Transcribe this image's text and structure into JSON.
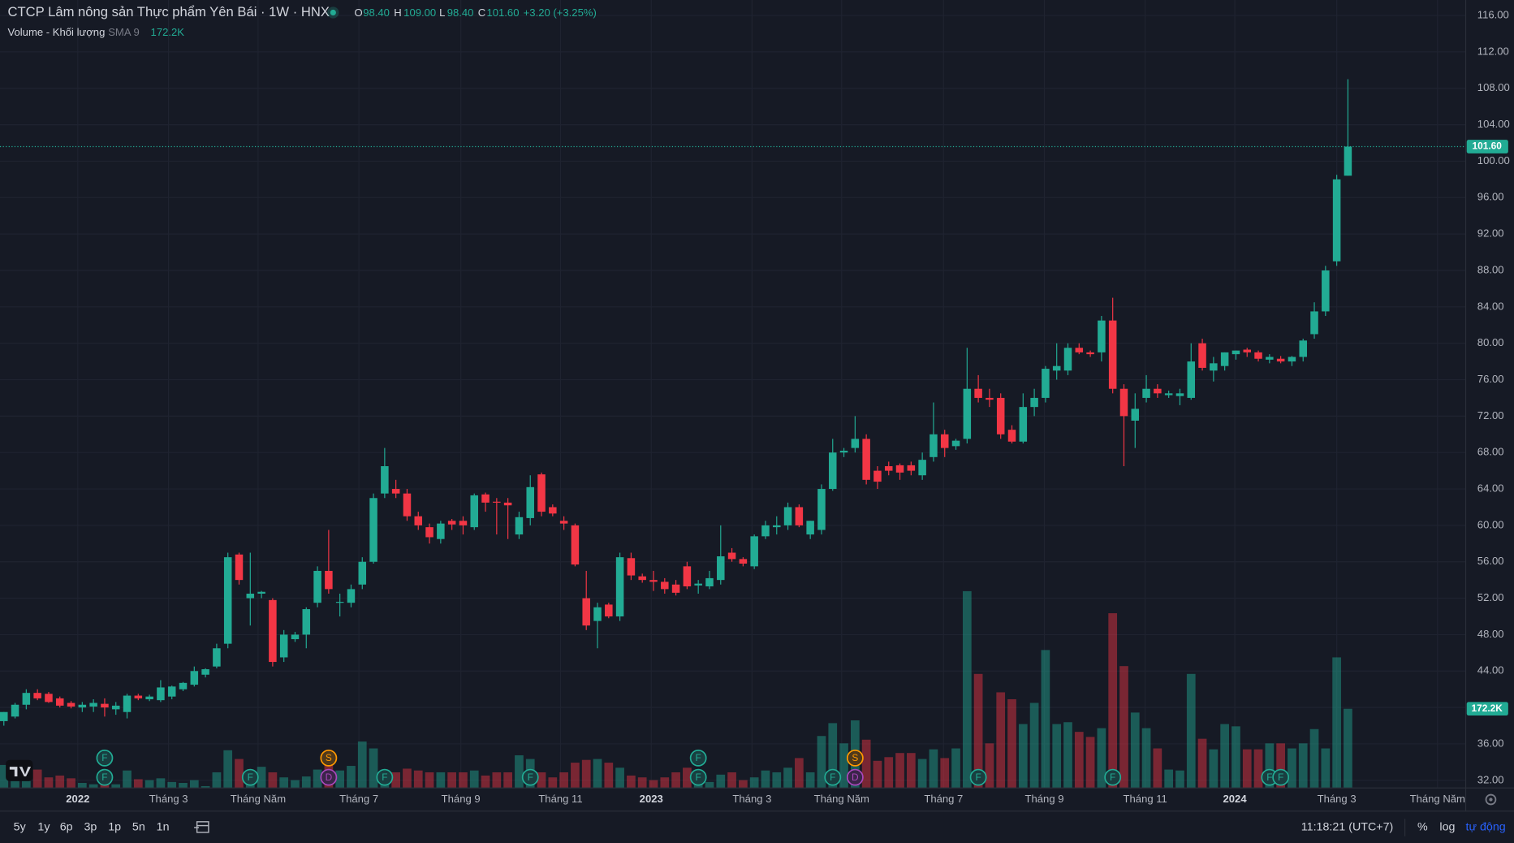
{
  "chart_data": {
    "type": "candlestick",
    "header": {
      "title": "CTCP Lâm nông sản Thực phẩm Yên Bái · 1W · HNX",
      "ohlc": [
        {
          "key": "O",
          "value": "98.40"
        },
        {
          "key": "H",
          "value": "109.00"
        },
        {
          "key": "L",
          "value": "98.40"
        },
        {
          "key": "C",
          "value": "101.60"
        }
      ],
      "change": "+3.20 (+3.25%)",
      "volume_title": "Volume - Khối lượng",
      "volume_sma": "SMA 9",
      "volume_value": "172.2K"
    },
    "up_color": "#22ab94",
    "down_color": "#f23645",
    "open": [
      38.5,
      39,
      40.3,
      41.6,
      41.5,
      41,
      40.5,
      40,
      40.1,
      40.4,
      39.8,
      39.5,
      41.3,
      40.9,
      40.8,
      41.2,
      42,
      42.5,
      43.6,
      44.5,
      47,
      56.8,
      52,
      52.5,
      51.8,
      45.5,
      47.5,
      48,
      51.5,
      55,
      51.5,
      51.5,
      53.5,
      56,
      63.5,
      64,
      63.5,
      61,
      59.8,
      58.5,
      60.5,
      60.5,
      59.8,
      63.4,
      62.6,
      62.5,
      59,
      60.8,
      65.6,
      62,
      60.5,
      60,
      52,
      49.5,
      51.3,
      50,
      56.4,
      54.4,
      54,
      53.8,
      53.5,
      55.5,
      53.4,
      53.3,
      54,
      57,
      56.3,
      55.5,
      58.8,
      59.8,
      60,
      62,
      59,
      59.5,
      64,
      68,
      68.5,
      69.5,
      66,
      66.5,
      66.6,
      66.6,
      65.5,
      67.5,
      70,
      68.7,
      69.5,
      75,
      74,
      74,
      70.5,
      69.2,
      73,
      74,
      77,
      77,
      79.5,
      79,
      79,
      82.5,
      75,
      71.5,
      74,
      75,
      74.3,
      74.2,
      74,
      80,
      77,
      77.5,
      78.8,
      79.3,
      79,
      78.2,
      78.3,
      78,
      78.5,
      81,
      83.5,
      89,
      98.4
    ],
    "high": [
      39.5,
      40.5,
      42,
      42,
      41.7,
      41.2,
      40.7,
      40.6,
      40.9,
      41,
      40.6,
      41.5,
      41.5,
      41.4,
      43,
      42.4,
      42.8,
      44.5,
      44.3,
      47,
      57,
      57,
      57,
      52.8,
      52,
      48.5,
      48.3,
      51,
      55.5,
      59.5,
      52.5,
      53.5,
      56.5,
      63.5,
      68.5,
      65,
      64,
      61.5,
      60.2,
      60.5,
      60.7,
      61,
      63.5,
      63.6,
      63,
      63,
      61.5,
      65.5,
      65.8,
      62.3,
      61,
      60.2,
      55,
      51.5,
      51.5,
      57,
      57,
      54.7,
      55,
      54.2,
      54,
      56,
      54,
      55,
      60,
      57.5,
      56.5,
      59,
      60.5,
      61,
      62.5,
      62.3,
      60.5,
      64.5,
      69.5,
      68.5,
      72,
      70,
      66.5,
      67,
      66.8,
      67,
      68,
      73.5,
      70.5,
      69.5,
      79.5,
      76.5,
      75,
      74.5,
      71,
      74.5,
      75,
      77.5,
      80,
      80,
      80,
      79.2,
      83,
      85,
      75.5,
      74.5,
      76.5,
      75.5,
      74.8,
      75,
      80,
      80.5,
      78.5,
      79,
      79.2,
      79.5,
      79.2,
      78.8,
      78.6,
      78.6,
      80.5,
      84.5,
      88.5,
      98.5,
      109
    ],
    "low": [
      38,
      38.8,
      39.8,
      40.8,
      40.5,
      40,
      39.9,
      39.5,
      39.5,
      39,
      39.2,
      38.8,
      40.8,
      40.7,
      40.6,
      40.9,
      41.8,
      42.3,
      43.3,
      44.3,
      46.5,
      53.5,
      49,
      52,
      44.5,
      45,
      47.2,
      46.5,
      51,
      52.5,
      50,
      51,
      53,
      55.8,
      63,
      63,
      60.5,
      59.5,
      58,
      58,
      59.5,
      59,
      59.5,
      61.5,
      59,
      58.5,
      58.5,
      60,
      61,
      61,
      59.5,
      55.5,
      48.5,
      46.5,
      49.8,
      49.5,
      54,
      53.7,
      52.8,
      52.5,
      52.3,
      53,
      52.5,
      53,
      53.5,
      56,
      55.5,
      55.2,
      58.5,
      59,
      59.5,
      59.8,
      58.5,
      59,
      63.8,
      67.5,
      68,
      64.5,
      64,
      65.5,
      65,
      65.5,
      65,
      67,
      67.5,
      68.3,
      69,
      73.5,
      73,
      69.5,
      69,
      69,
      72,
      73.5,
      76,
      76.5,
      78.8,
      78.5,
      78,
      74.5,
      66.5,
      68.5,
      73.5,
      74,
      74,
      73.2,
      73.8,
      77,
      75.8,
      77,
      78.2,
      78.5,
      78,
      77.8,
      77.8,
      77.5,
      78,
      80.5,
      83,
      88.5,
      98.4
    ],
    "close": [
      39.5,
      40.3,
      41.6,
      41,
      40.6,
      40.2,
      40.1,
      40.3,
      40.5,
      40,
      40.2,
      41.3,
      41,
      41.2,
      42.2,
      42.3,
      42.7,
      44,
      44.2,
      46.5,
      56.5,
      54,
      52.5,
      52.7,
      45,
      48,
      48,
      50.8,
      55,
      53,
      51.6,
      53,
      56,
      63,
      66.5,
      63.5,
      61,
      60,
      58.7,
      60.2,
      60.1,
      60,
      63.3,
      62.5,
      62.5,
      62.2,
      60.9,
      64.2,
      61.5,
      61.3,
      60.2,
      55.7,
      49,
      51,
      50,
      56.5,
      54.5,
      54,
      53.8,
      53,
      52.6,
      53.3,
      53.6,
      54.2,
      56.6,
      56.3,
      55.8,
      58.8,
      60,
      60,
      62,
      60,
      60.5,
      64,
      68,
      68.2,
      69.5,
      65,
      64.8,
      66,
      65.8,
      66,
      67.2,
      70,
      68.5,
      69.3,
      75,
      74,
      73.8,
      70,
      69.2,
      73,
      74,
      77.2,
      77.5,
      79.5,
      79,
      78.8,
      82.5,
      75,
      72,
      72.8,
      75,
      74.5,
      74.5,
      74.5,
      78,
      77.3,
      77.8,
      79,
      79.2,
      79,
      78.3,
      78.5,
      78,
      78.5,
      80.3,
      83.5,
      88,
      98,
      101.6
    ],
    "volume": [
      50000,
      44000,
      38000,
      40000,
      23000,
      27000,
      21000,
      11000,
      8000,
      23000,
      8000,
      38000,
      19000,
      17000,
      21000,
      13000,
      11000,
      17000,
      4000,
      34000,
      82000,
      63000,
      34000,
      46000,
      34000,
      23000,
      17000,
      25000,
      40000,
      55000,
      38000,
      48000,
      101000,
      86000,
      38000,
      34000,
      42000,
      38000,
      34000,
      34000,
      34000,
      34000,
      38000,
      27000,
      34000,
      34000,
      71000,
      63000,
      34000,
      23000,
      34000,
      55000,
      61000,
      63000,
      55000,
      44000,
      27000,
      23000,
      17000,
      23000,
      34000,
      44000,
      8000,
      13000,
      29000,
      34000,
      17000,
      23000,
      38000,
      34000,
      44000,
      65000,
      34000,
      113000,
      141000,
      97000,
      147000,
      105000,
      59000,
      67000,
      76000,
      76000,
      63000,
      84000,
      65000,
      86000,
      428000,
      248000,
      97000,
      208000,
      193000,
      139000,
      185000,
      300000,
      139000,
      143000,
      122000,
      111000,
      130000,
      380000,
      265000,
      164000,
      130000,
      86000,
      40000,
      38000,
      248000,
      107000,
      84000,
      139000,
      134000,
      84000,
      84000,
      97000,
      97000,
      86000,
      97000,
      128000,
      86000,
      284000,
      172200
    ],
    "ylim": [
      31.16,
      117.7
    ],
    "vlim": [
      0,
      1713600
    ],
    "yticks": [
      {
        "value": 32,
        "label": "32.00"
      },
      {
        "value": 36,
        "label": "36.00"
      },
      {
        "value": 40,
        "label": "40.00"
      },
      {
        "value": 44,
        "label": "44.00"
      },
      {
        "value": 48,
        "label": "48.00"
      },
      {
        "value": 52,
        "label": "52.00"
      },
      {
        "value": 56,
        "label": "56.00"
      },
      {
        "value": 60,
        "label": "60.00"
      },
      {
        "value": 64,
        "label": "64.00"
      },
      {
        "value": 68,
        "label": "68.00"
      },
      {
        "value": 72,
        "label": "72.00"
      },
      {
        "value": 76,
        "label": "76.00"
      },
      {
        "value": 80,
        "label": "80.00"
      },
      {
        "value": 84,
        "label": "84.00"
      },
      {
        "value": 88,
        "label": "88.00"
      },
      {
        "value": 92,
        "label": "92.00"
      },
      {
        "value": 96,
        "label": "96.00"
      },
      {
        "value": 100,
        "label": "100.00"
      },
      {
        "value": 104,
        "label": "104.00"
      },
      {
        "value": 108,
        "label": "108.00"
      },
      {
        "value": 112,
        "label": "112.00"
      },
      {
        "value": 116,
        "label": "116.00"
      }
    ],
    "xticks": [
      {
        "value": 6.6,
        "label": "2022"
      },
      {
        "value": 14.7,
        "label": "Tháng 3"
      },
      {
        "value": 22.7,
        "label": "Tháng Năm"
      },
      {
        "value": 31.7,
        "label": "Tháng 7"
      },
      {
        "value": 40.8,
        "label": "Tháng 9"
      },
      {
        "value": 49.7,
        "label": "Tháng 11"
      },
      {
        "value": 57.8,
        "label": "2023"
      },
      {
        "value": 66.8,
        "label": "Tháng 3"
      },
      {
        "value": 74.8,
        "label": "Tháng Năm"
      },
      {
        "value": 83.9,
        "label": "Tháng 7"
      },
      {
        "value": 92.9,
        "label": "Tháng 9"
      },
      {
        "value": 101.9,
        "label": "Tháng 11"
      },
      {
        "value": 109.9,
        "label": "2024"
      },
      {
        "value": 119,
        "label": "Tháng 3"
      },
      {
        "value": 128,
        "label": "Tháng Năm"
      }
    ],
    "grid": true,
    "event_colors": {
      "F": "#22ab94",
      "S": "#ff9800",
      "D": "#ab47bc"
    },
    "events_top": [
      {
        "label": "F",
        "index": 9
      },
      {
        "label": "S",
        "index": 29
      },
      {
        "label": "F",
        "index": 62
      },
      {
        "label": "S",
        "index": 76
      }
    ],
    "events_bottom": [
      {
        "label": "F",
        "index": 9
      },
      {
        "label": "F",
        "index": 22
      },
      {
        "label": "D",
        "index": 29
      },
      {
        "label": "F",
        "index": 34
      },
      {
        "label": "F",
        "index": 47
      },
      {
        "label": "F",
        "index": 62
      },
      {
        "label": "F",
        "index": 74
      },
      {
        "label": "D",
        "index": 76
      },
      {
        "label": "F",
        "index": 87
      },
      {
        "label": "F",
        "index": 99
      },
      {
        "label": "F",
        "index": 113
      },
      {
        "label": "F",
        "index": 114
      }
    ],
    "toolbar": {
      "ranges": [
        "5y",
        "1y",
        "6p",
        "3p",
        "1p",
        "5n",
        "1n"
      ],
      "time": "11:18:21 (UTC+7)",
      "percent": "%",
      "log": "log",
      "auto": "tự động"
    }
  }
}
